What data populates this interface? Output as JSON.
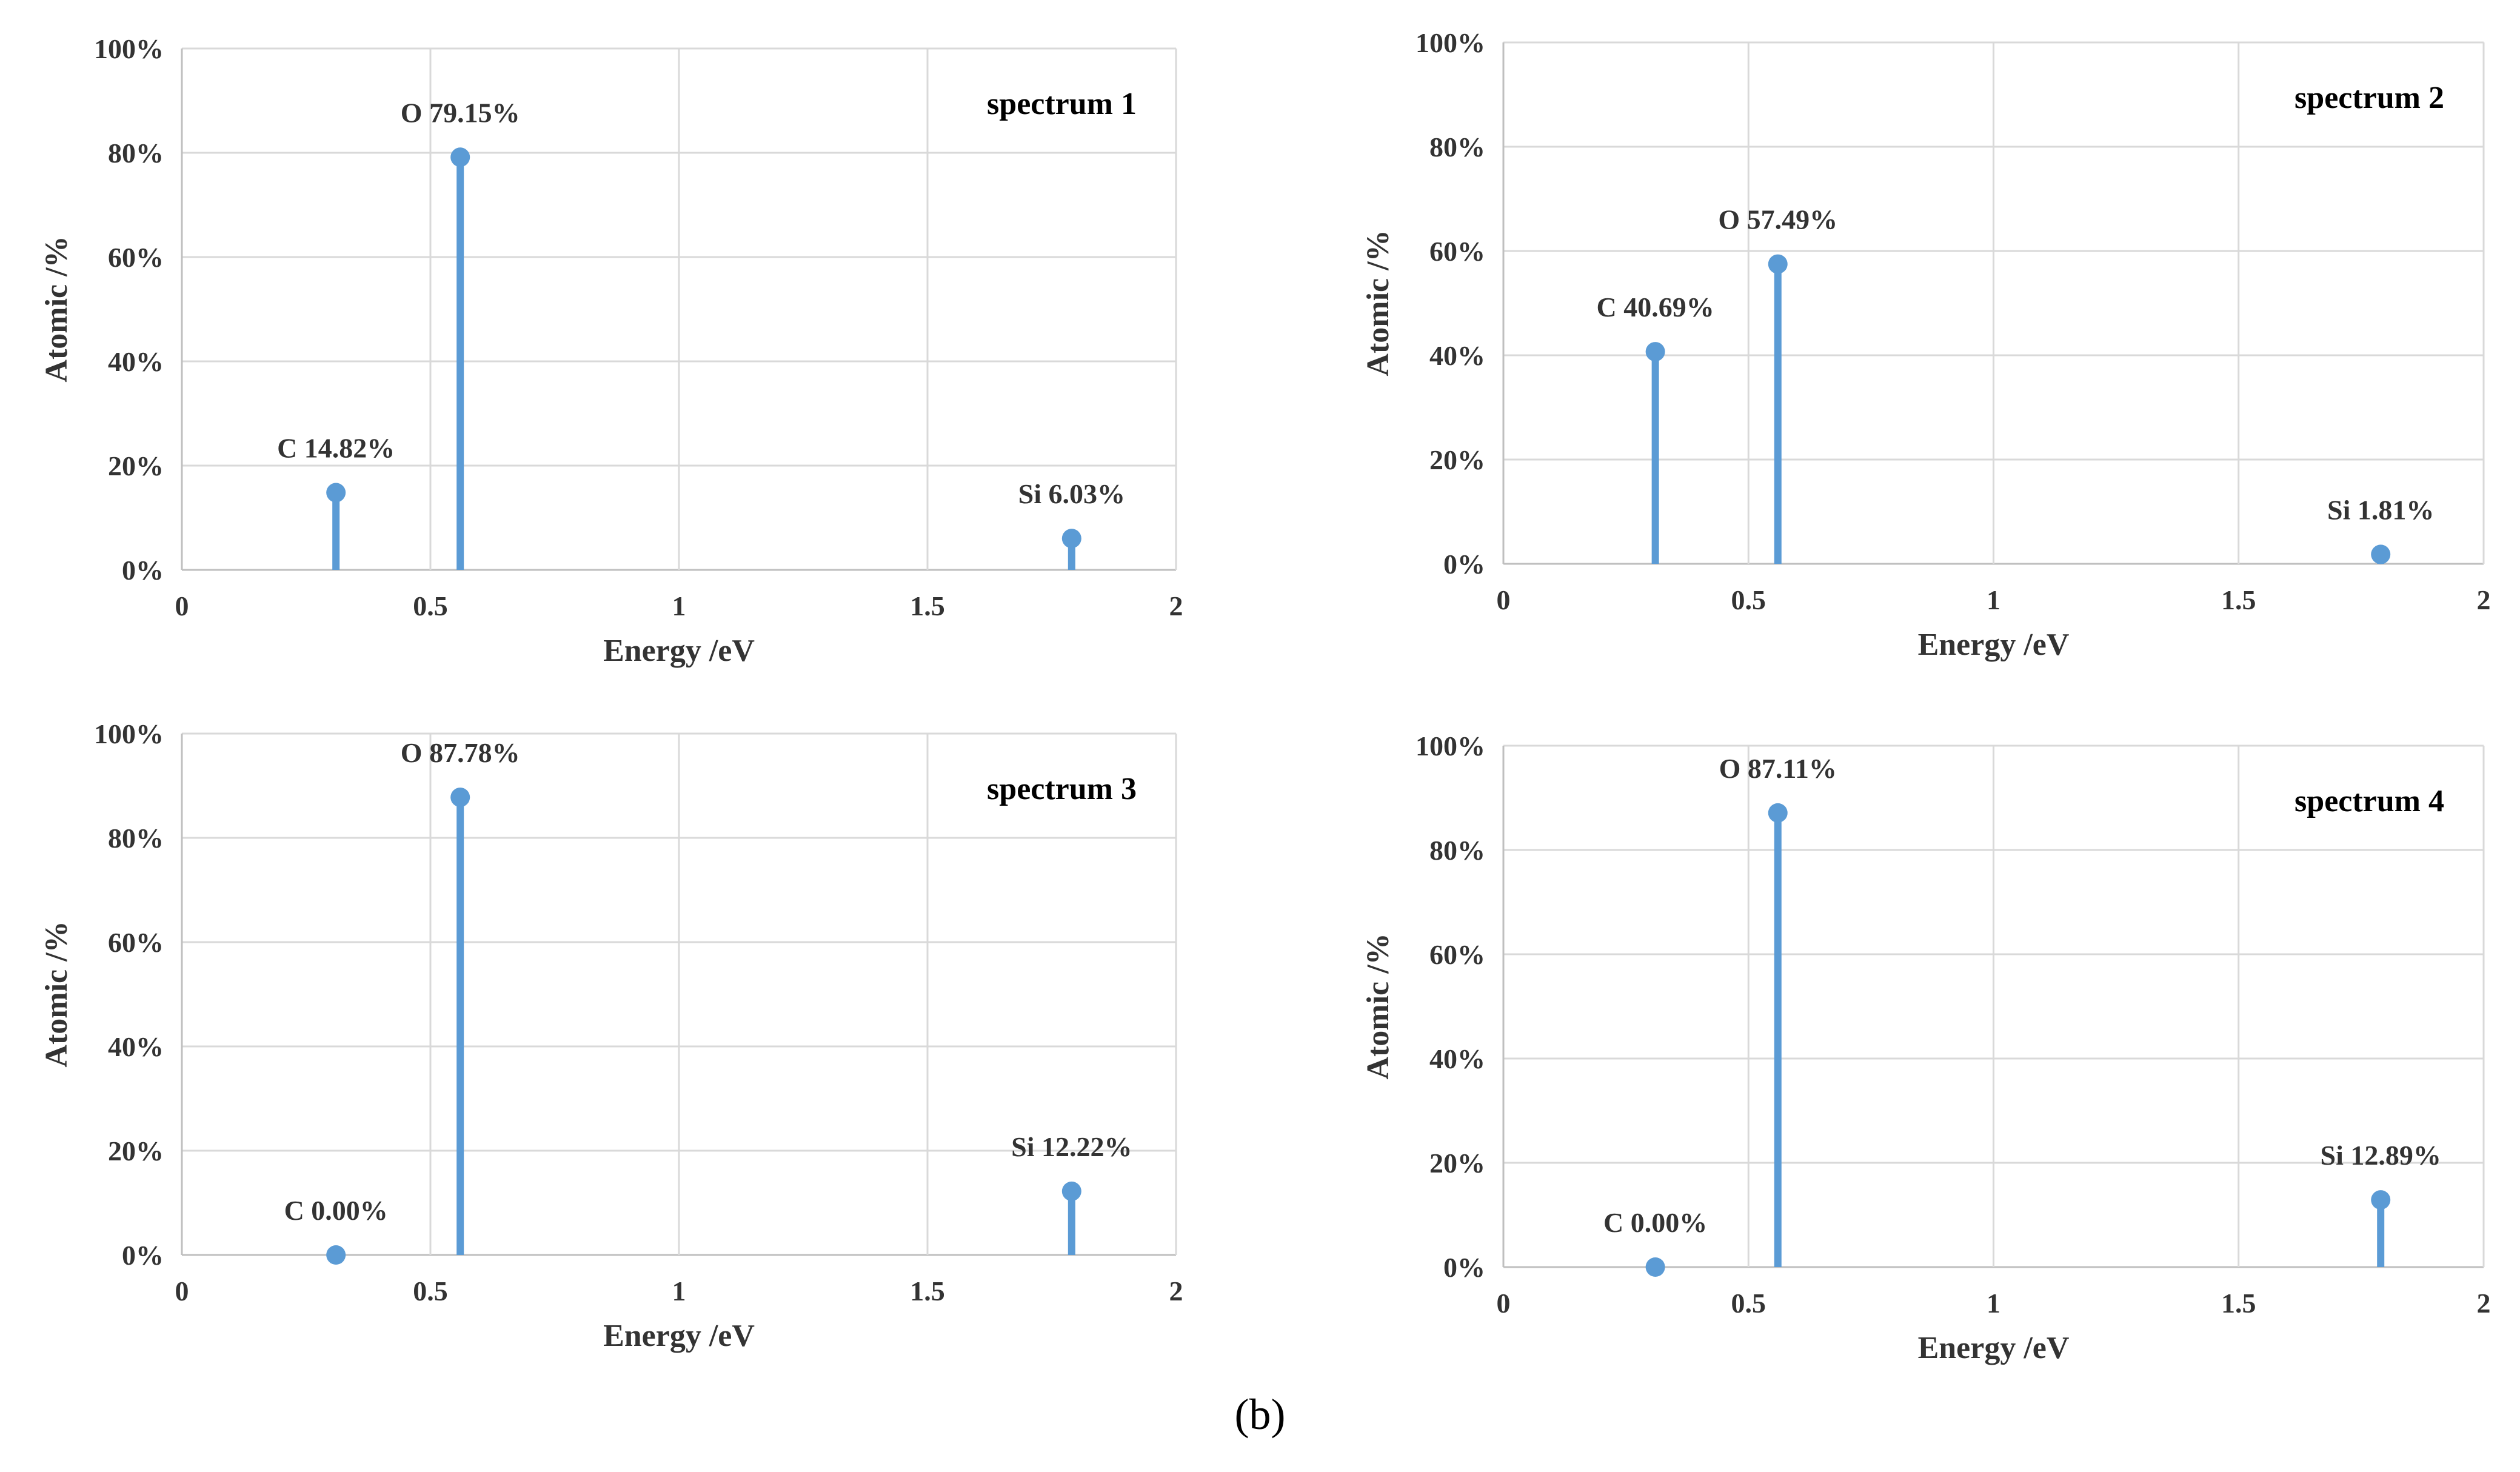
{
  "caption": "(b)",
  "colors": {
    "series": "#5b9bd5",
    "grid": "#d9d9d9",
    "axis": "#bfbfbf",
    "text": "#333333"
  },
  "chart_data": [
    {
      "type": "stem",
      "title": "spectrum 1",
      "xlabel": "Energy /eV",
      "ylabel": "Atomic /%",
      "xlim": [
        0,
        2
      ],
      "ylim": [
        0,
        100
      ],
      "xticks": [
        "0",
        "0.5",
        "1",
        "1.5",
        "2"
      ],
      "yticks": [
        "0%",
        "20%",
        "40%",
        "60%",
        "80%",
        "100%"
      ],
      "points": [
        {
          "element": "C",
          "x": 0.31,
          "y": 14.82,
          "label": "C 14.82%"
        },
        {
          "element": "O",
          "x": 0.56,
          "y": 79.15,
          "label": "O 79.15%"
        },
        {
          "element": "Si",
          "x": 1.79,
          "y": 6.03,
          "label": "Si 6.03%"
        }
      ]
    },
    {
      "type": "stem",
      "title": "spectrum 2",
      "xlabel": "Energy /eV",
      "ylabel": "Atomic /%",
      "xlim": [
        0,
        2
      ],
      "ylim": [
        0,
        100
      ],
      "xticks": [
        "0",
        "0.5",
        "1",
        "1.5",
        "2"
      ],
      "yticks": [
        "0%",
        "20%",
        "40%",
        "60%",
        "80%",
        "100%"
      ],
      "points": [
        {
          "element": "C",
          "x": 0.31,
          "y": 40.69,
          "label": "C 40.69%"
        },
        {
          "element": "O",
          "x": 0.56,
          "y": 57.49,
          "label": "O 57.49%"
        },
        {
          "element": "Si",
          "x": 1.79,
          "y": 1.81,
          "label": "Si 1.81%"
        }
      ]
    },
    {
      "type": "stem",
      "title": "spectrum 3",
      "xlabel": "Energy /eV",
      "ylabel": "Atomic /%",
      "xlim": [
        0,
        2
      ],
      "ylim": [
        0,
        100
      ],
      "xticks": [
        "0",
        "0.5",
        "1",
        "1.5",
        "2"
      ],
      "yticks": [
        "0%",
        "20%",
        "40%",
        "60%",
        "80%",
        "100%"
      ],
      "points": [
        {
          "element": "C",
          "x": 0.31,
          "y": 0.0,
          "label": "C 0.00%"
        },
        {
          "element": "O",
          "x": 0.56,
          "y": 87.78,
          "label": "O 87.78%"
        },
        {
          "element": "Si",
          "x": 1.79,
          "y": 12.22,
          "label": "Si 12.22%"
        }
      ]
    },
    {
      "type": "stem",
      "title": "spectrum 4",
      "xlabel": "Energy /eV",
      "ylabel": "Atomic /%",
      "xlim": [
        0,
        2
      ],
      "ylim": [
        0,
        100
      ],
      "xticks": [
        "0",
        "0.5",
        "1",
        "1.5",
        "2"
      ],
      "yticks": [
        "0%",
        "20%",
        "40%",
        "60%",
        "80%",
        "100%"
      ],
      "points": [
        {
          "element": "C",
          "x": 0.31,
          "y": 0.0,
          "label": "C 0.00%"
        },
        {
          "element": "O",
          "x": 0.56,
          "y": 87.11,
          "label": "O 87.11%"
        },
        {
          "element": "Si",
          "x": 1.79,
          "y": 12.89,
          "label": "Si 12.89%"
        }
      ]
    }
  ]
}
